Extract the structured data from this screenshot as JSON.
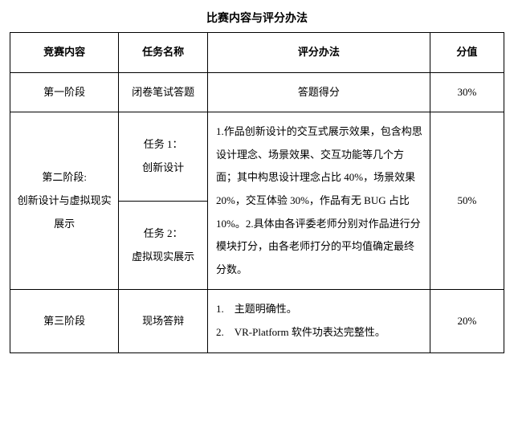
{
  "title": "比赛内容与评分办法",
  "headers": {
    "c1": "竞赛内容",
    "c2": "任务名称",
    "c3": "评分办法",
    "c4": "分值"
  },
  "rows": {
    "r1": {
      "stage": "第一阶段",
      "task": "闭卷笔试答题",
      "method": "答题得分",
      "score": "30%"
    },
    "r2": {
      "stage_line1": "第二阶段:",
      "stage_line2": "创新设计与虚拟现实",
      "stage_line3": "展示",
      "task1_line1": "任务 1：",
      "task1_line2": "创新设计",
      "task2_line1": "任务 2：",
      "task2_line2": "虚拟现实展示",
      "method": "1.作品创新设计的交互式展示效果，包含构思设计理念、场景效果、交互功能等几个方面；其中构思设计理念占比 40%，场景效果 20%，交互体验 30%，作品有无 BUG 占比 10%。2.具体由各评委老师分别对作品进行分模块打分，由各老师打分的平均值确定最终分数。",
      "score": "50%"
    },
    "r3": {
      "stage": "第三阶段",
      "task": "现场答辩",
      "method_line1": "1. 主题明确性。",
      "method_line2": "2. VR-Platform 软件功表达完整性。",
      "score": "20%"
    }
  }
}
